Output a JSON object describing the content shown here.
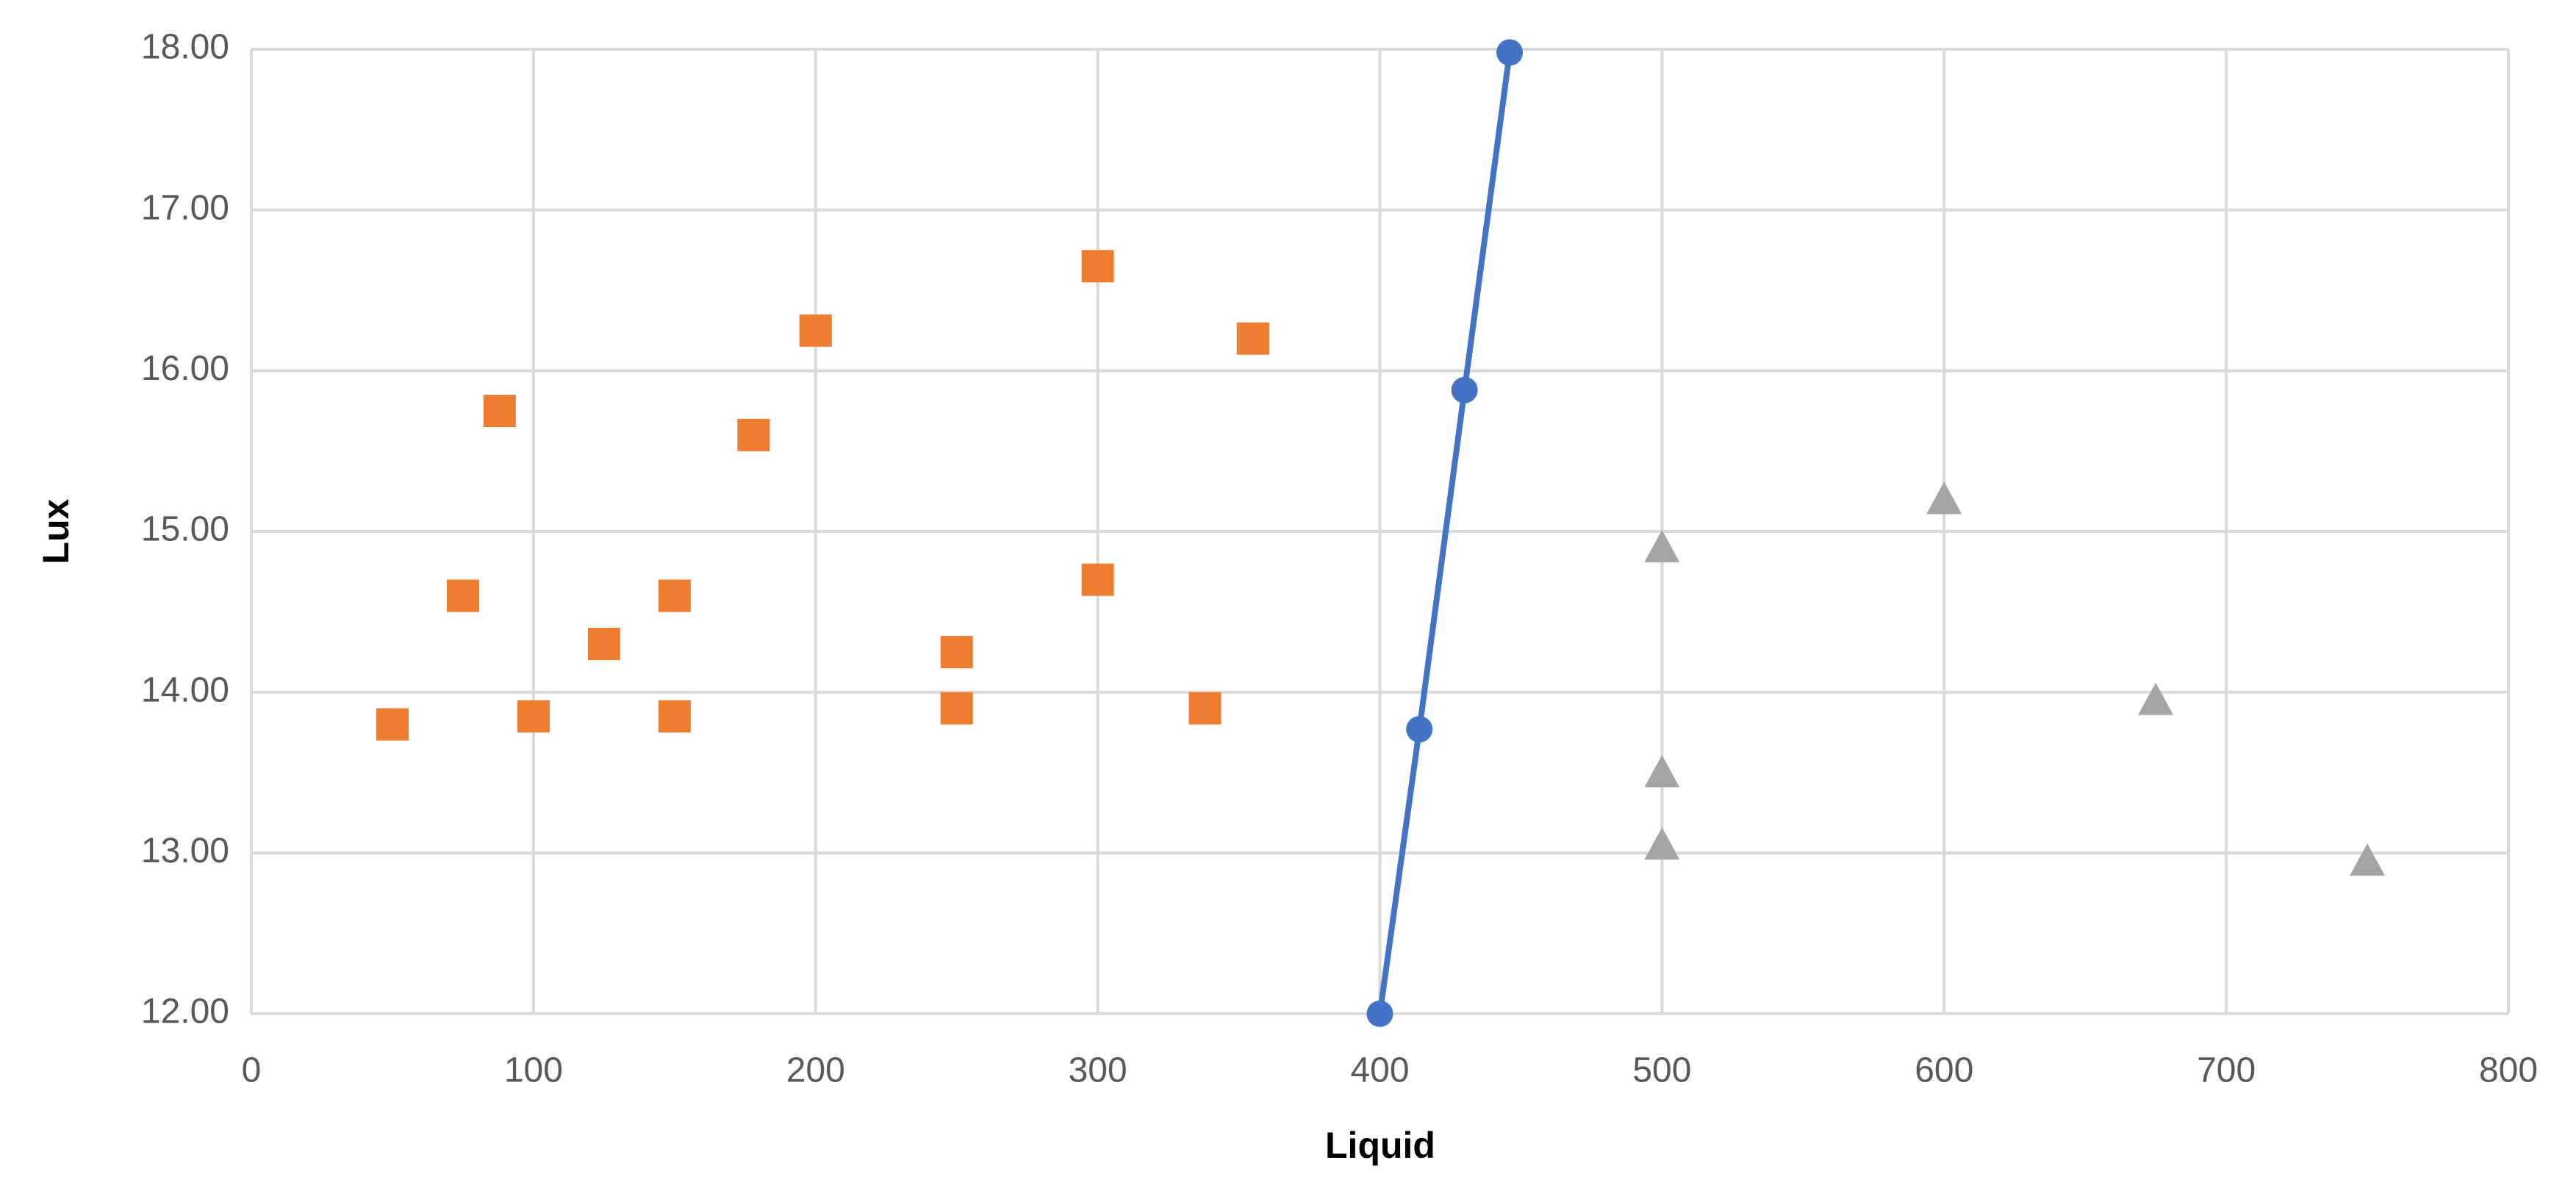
{
  "chart_data": {
    "type": "scatter",
    "x_label": "Liquid",
    "y_label": "Lux",
    "xlim": [
      0,
      800
    ],
    "xticks": [
      0,
      100,
      200,
      300,
      400,
      500,
      600,
      700,
      800
    ],
    "ylim": [
      12,
      18
    ],
    "yticks": [
      {
        "value": 12,
        "label": "12.00"
      },
      {
        "value": 13,
        "label": "13.00"
      },
      {
        "value": 14,
        "label": "14.00"
      },
      {
        "value": 15,
        "label": "15.00"
      },
      {
        "value": 16,
        "label": "16.00"
      },
      {
        "value": 17,
        "label": "17.00"
      },
      {
        "value": 18,
        "label": "18.00"
      }
    ],
    "grid": true,
    "series": [
      {
        "color": "#4472c4",
        "marker": "circle",
        "line": true,
        "x": [
          400,
          414,
          430,
          446
        ],
        "values": [
          12.0,
          13.77,
          15.88,
          17.98
        ]
      },
      {
        "color": "#ed7d31",
        "marker": "square",
        "line": false,
        "x": [
          50,
          75,
          88,
          100,
          125,
          150,
          150,
          178,
          200,
          250,
          250,
          300,
          300,
          338,
          355
        ],
        "values": [
          13.8,
          14.6,
          15.75,
          13.85,
          14.3,
          14.6,
          13.85,
          15.6,
          16.25,
          14.25,
          13.9,
          16.65,
          14.7,
          13.9,
          16.2
        ]
      },
      {
        "color": "#a5a5a5",
        "marker": "triangle",
        "line": false,
        "x": [
          500,
          500,
          500,
          600,
          675,
          750
        ],
        "values": [
          14.9,
          13.5,
          13.05,
          15.2,
          13.95,
          12.95
        ]
      }
    ]
  }
}
